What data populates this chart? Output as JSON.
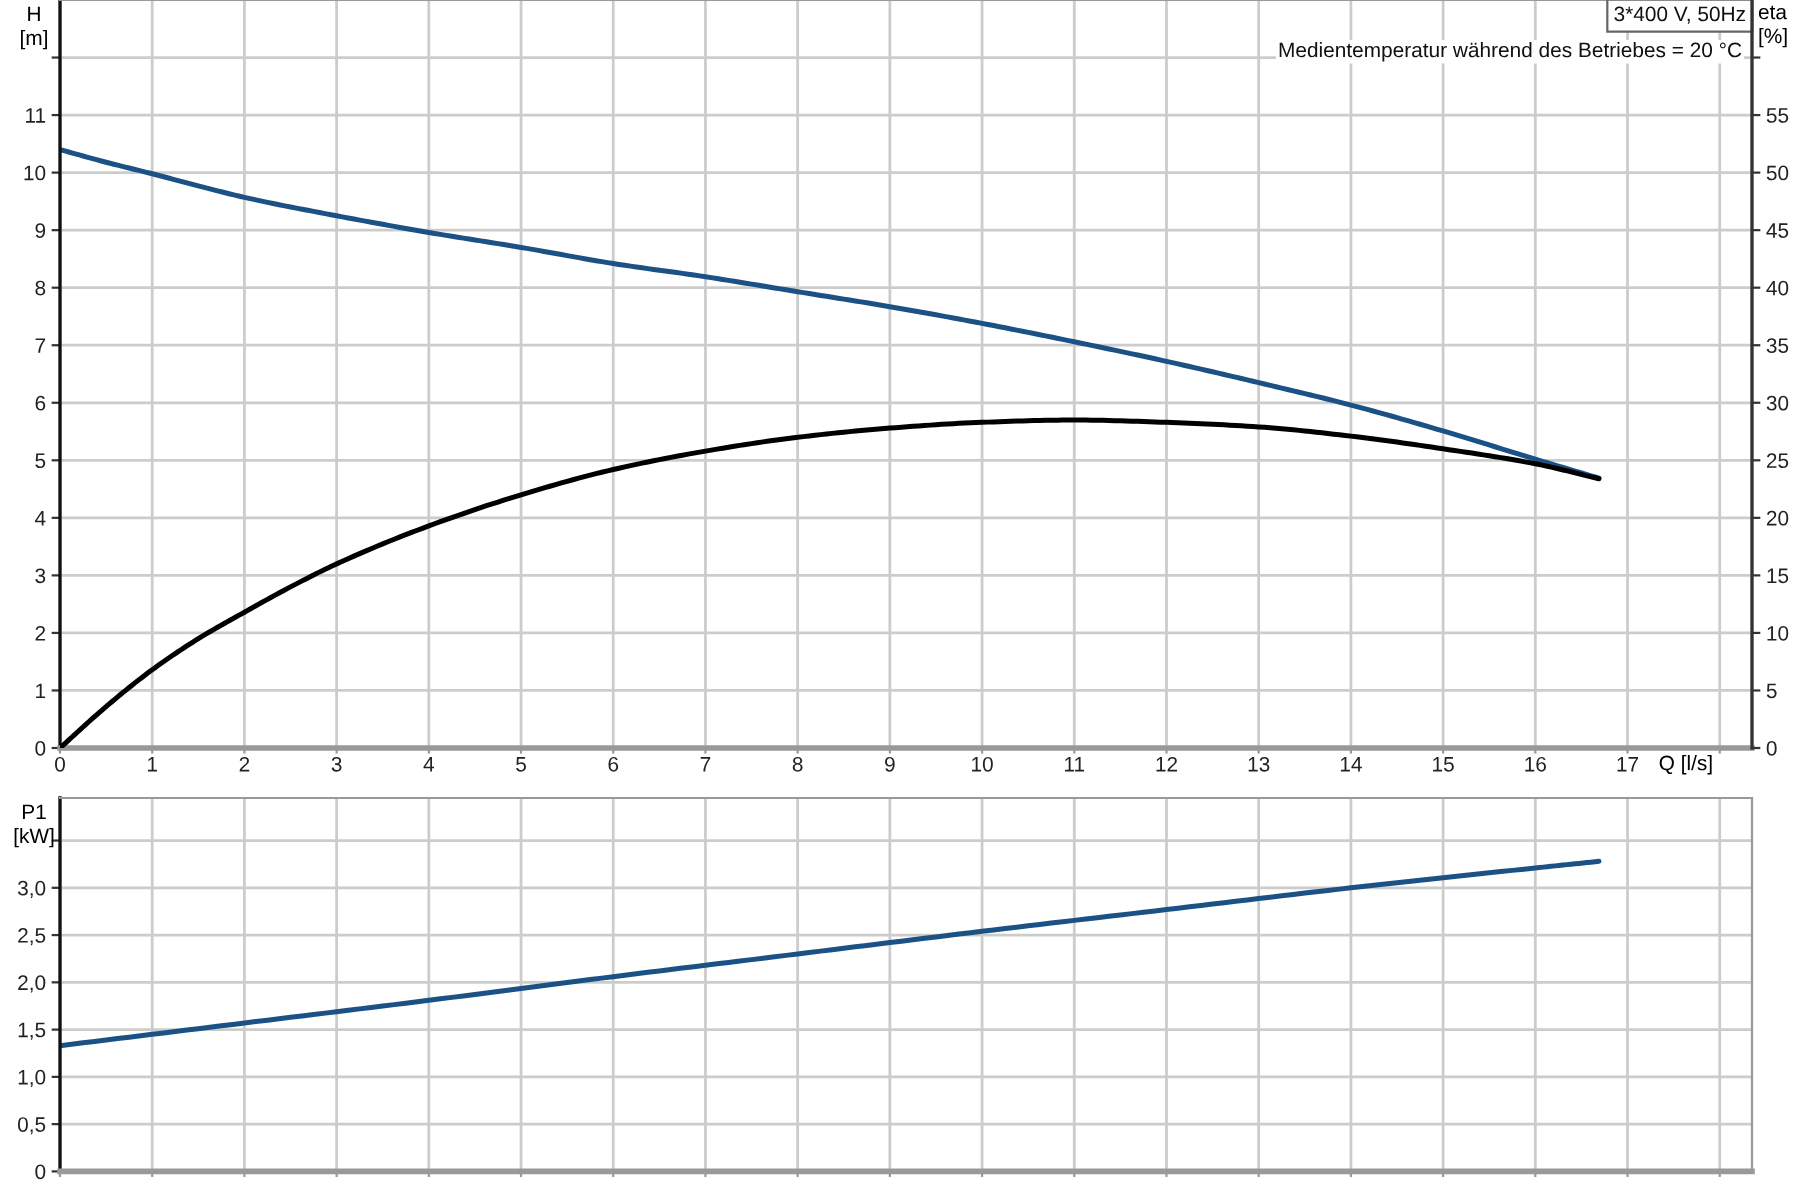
{
  "chart_data": [
    {
      "type": "line",
      "xlabel": "Q [l/s]",
      "ylabel": "H [m]",
      "y2label": "eta [%]",
      "annotations": [
        "3*400 V, 50Hz",
        "Medientemperatur während des Betriebes = 20 °C"
      ],
      "xlim": [
        0,
        18.35
      ],
      "xticks": [
        0,
        1,
        2,
        3,
        4,
        5,
        6,
        7,
        8,
        9,
        10,
        11,
        12,
        13,
        14,
        15,
        16,
        17,
        {
          "value": 18,
          "label": null
        }
      ],
      "ylim": [
        0,
        13
      ],
      "yticks": [
        0,
        1,
        2,
        3,
        4,
        5,
        6,
        7,
        8,
        9,
        10,
        11,
        {
          "value": 12,
          "label": null
        }
      ],
      "y2lim": [
        0,
        65
      ],
      "y2ticks": [
        0,
        5,
        10,
        15,
        20,
        25,
        30,
        35,
        40,
        45,
        50,
        55,
        {
          "value": 60,
          "label": null
        }
      ],
      "grid": true,
      "series": [
        {
          "color": "#1c5185",
          "x": [
            0,
            0.5,
            1,
            1.5,
            2,
            3,
            4,
            5,
            6,
            7,
            8,
            9,
            10,
            11,
            12,
            13,
            14,
            15,
            16,
            16.69
          ],
          "values": [
            10.4,
            10.18,
            9.98,
            9.77,
            9.57,
            9.25,
            8.96,
            8.7,
            8.42,
            8.19,
            7.93,
            7.67,
            7.38,
            7.06,
            6.72,
            6.35,
            5.96,
            5.51,
            5.02,
            4.69
          ]
        },
        {
          "color": "#000000",
          "axis": "y2",
          "x": [
            0,
            0.5,
            1,
            1.5,
            2,
            2.5,
            3,
            4,
            5,
            6,
            7,
            8,
            9,
            10,
            11,
            12,
            13,
            14,
            15,
            16,
            16.69
          ],
          "values": [
            0,
            3.6,
            6.8,
            9.5,
            11.8,
            14.0,
            16.0,
            19.3,
            22.0,
            24.2,
            25.8,
            27.0,
            27.8,
            28.3,
            28.5,
            28.3,
            27.9,
            27.1,
            26.0,
            24.7,
            23.4
          ]
        }
      ]
    },
    {
      "type": "line",
      "ylabel": "P1 [kW]",
      "xlim": [
        0,
        18.35
      ],
      "xticks": [
        0,
        1,
        2,
        3,
        4,
        5,
        6,
        7,
        8,
        9,
        10,
        11,
        12,
        13,
        14,
        15,
        16,
        17,
        18
      ],
      "ylim": [
        0,
        3.95
      ],
      "yticks": [
        0,
        {
          "value": 0.5,
          "label": "0,5"
        },
        {
          "value": 1.0,
          "label": "1,0"
        },
        {
          "value": 1.5,
          "label": "1,5"
        },
        {
          "value": 2.0,
          "label": "2,0"
        },
        {
          "value": 2.5,
          "label": "2,5"
        },
        {
          "value": 3.0,
          "label": "3,0"
        },
        {
          "value": 3.5,
          "label": null
        }
      ],
      "tick_labels": "y",
      "grid": true,
      "series": [
        {
          "color": "#1c5185",
          "x": [
            0,
            2,
            4,
            6,
            8,
            10,
            12,
            14,
            16,
            16.69
          ],
          "values": [
            1.33,
            1.57,
            1.81,
            2.06,
            2.3,
            2.54,
            2.77,
            3.0,
            3.21,
            3.28
          ]
        }
      ]
    }
  ]
}
